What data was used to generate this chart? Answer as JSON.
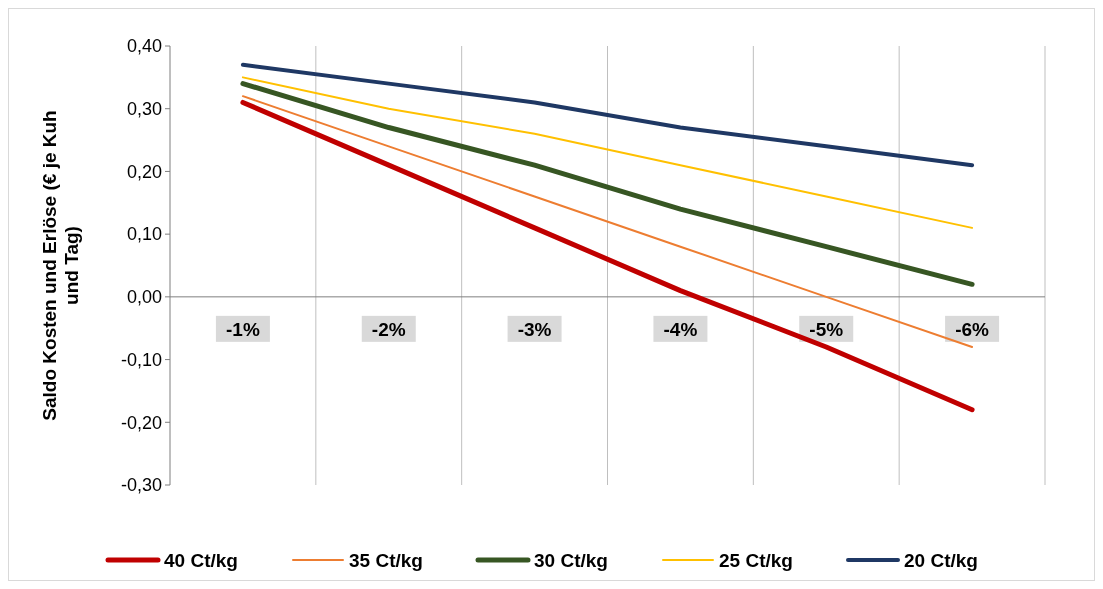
{
  "chart_data": {
    "type": "line",
    "ylabel": "Saldo Kosten und Erlöse (€ je Kuh und Tag)",
    "categories": [
      "-1%",
      "-2%",
      "-3%",
      "-4%",
      "-5%",
      "-6%"
    ],
    "series": [
      {
        "name": "40 Ct/kg",
        "color": "#c00000",
        "values": [
          0.31,
          0.21,
          0.11,
          0.01,
          -0.08,
          -0.18
        ]
      },
      {
        "name": "35 Ct/kg",
        "color": "#ed7d31",
        "values": [
          0.32,
          0.24,
          0.16,
          0.08,
          0.0,
          -0.08
        ]
      },
      {
        "name": "30 Ct/kg",
        "color": "#375623",
        "values": [
          0.34,
          0.27,
          0.21,
          0.14,
          0.08,
          0.02
        ]
      },
      {
        "name": "25 Ct/kg",
        "color": "#ffc000",
        "values": [
          0.35,
          0.3,
          0.26,
          0.21,
          0.16,
          0.11
        ]
      },
      {
        "name": "20 Ct/kg",
        "color": "#1f3864",
        "values": [
          0.37,
          0.34,
          0.31,
          0.27,
          0.24,
          0.21
        ]
      }
    ],
    "ylim": [
      -0.3,
      0.4
    ],
    "yticks": [
      {
        "value": -0.3,
        "label": "-0,30"
      },
      {
        "value": -0.2,
        "label": "-0,20"
      },
      {
        "value": -0.1,
        "label": "-0,10"
      },
      {
        "value": 0,
        "label": "0,00"
      },
      {
        "value": 0.1,
        "label": "0,10"
      },
      {
        "value": 0.2,
        "label": "0,20"
      },
      {
        "value": 0.3,
        "label": "0,30"
      },
      {
        "value": 0.4,
        "label": "0,40"
      }
    ],
    "grid": "x",
    "legend": "bottom",
    "marker": "none",
    "line_style": "solid"
  }
}
